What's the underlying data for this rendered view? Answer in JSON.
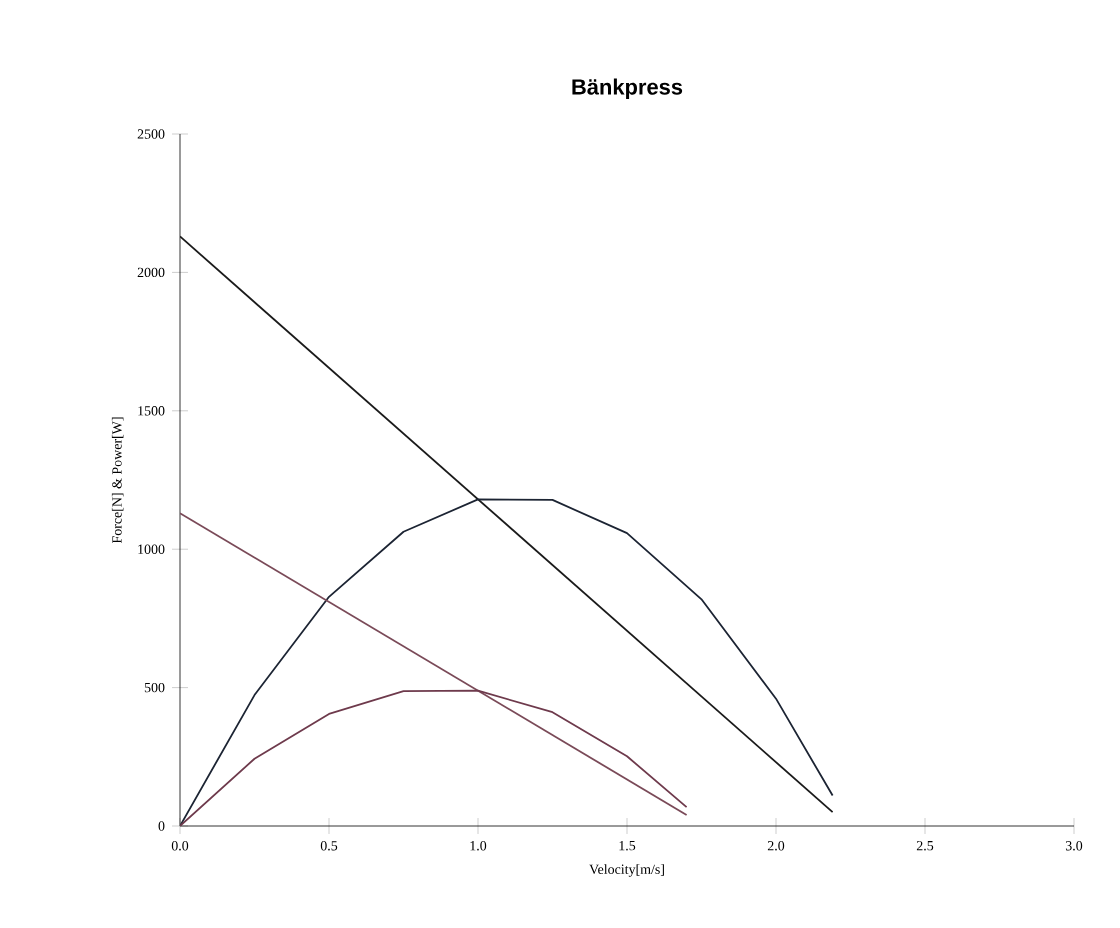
{
  "chart_data": {
    "type": "line",
    "title": "Bänkpress",
    "xlabel": "Velocity[m/s]",
    "ylabel": "Force[N] & Power[W]",
    "xlim": [
      0,
      3
    ],
    "ylim": [
      0,
      2500
    ],
    "xticks": [
      {
        "value": 0,
        "label": "0.0"
      },
      {
        "value": 0.5,
        "label": "0.5"
      },
      {
        "value": 1,
        "label": "1.0"
      },
      {
        "value": 1.5,
        "label": "1.5"
      },
      {
        "value": 2,
        "label": "2.0"
      },
      {
        "value": 2.5,
        "label": "2.5"
      },
      {
        "value": 3,
        "label": "3.0"
      }
    ],
    "yticks": [
      0,
      500,
      1000,
      1500,
      2000,
      2500
    ],
    "marker": "none",
    "line_style": "solid",
    "series": [
      {
        "color": "#1a1a1a",
        "x": [
          0,
          2.19
        ],
        "values": [
          2130,
          50
        ]
      },
      {
        "color": "#1c2433",
        "x": [
          0,
          0.25,
          0.5,
          0.75,
          1.0,
          1.25,
          1.5,
          1.75,
          2.0,
          2.19
        ],
        "values": [
          0,
          473,
          828,
          1063,
          1180,
          1178,
          1058,
          819,
          460,
          110
        ]
      },
      {
        "color": "#7a4a58",
        "x": [
          0,
          1.7
        ],
        "values": [
          1130,
          40
        ]
      },
      {
        "color": "#6e3a4c",
        "x": [
          0,
          0.25,
          0.5,
          0.75,
          1.0,
          1.25,
          1.5,
          1.7
        ],
        "values": [
          0,
          243,
          405,
          487,
          489,
          411,
          252,
          68
        ]
      }
    ]
  }
}
